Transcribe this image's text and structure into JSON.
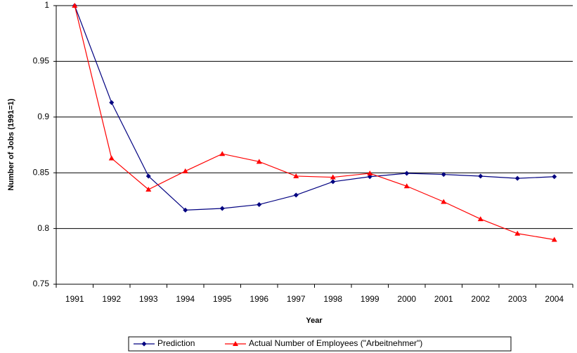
{
  "chart_data": {
    "type": "line",
    "y_label": "Number of Jobs (1991=1)",
    "x_label": "Year",
    "categories": [
      "1991",
      "1992",
      "1993",
      "1994",
      "1995",
      "1996",
      "1997",
      "1998",
      "1999",
      "2000",
      "2001",
      "2002",
      "2003",
      "2004"
    ],
    "series": [
      {
        "name": "Prediction",
        "color": "#000080",
        "marker": "diamond",
        "values": [
          1,
          0.913,
          0.847,
          0.8165,
          0.818,
          0.8215,
          0.83,
          0.842,
          0.8465,
          0.8495,
          0.8485,
          0.847,
          0.845,
          0.8465
        ]
      },
      {
        "name": "Actual Number of Employees (\"Arbeitnehmer\")",
        "color": "#ff0000",
        "marker": "triangle",
        "values": [
          1,
          0.863,
          0.835,
          0.8515,
          0.867,
          0.86,
          0.847,
          0.846,
          0.8495,
          0.838,
          0.824,
          0.8085,
          0.7955,
          0.79
        ]
      }
    ],
    "ylim": [
      0.75,
      1
    ],
    "yticks": [
      0.75,
      0.8,
      0.85,
      0.9,
      0.95,
      1
    ],
    "grid": true,
    "legend": "bottom"
  }
}
